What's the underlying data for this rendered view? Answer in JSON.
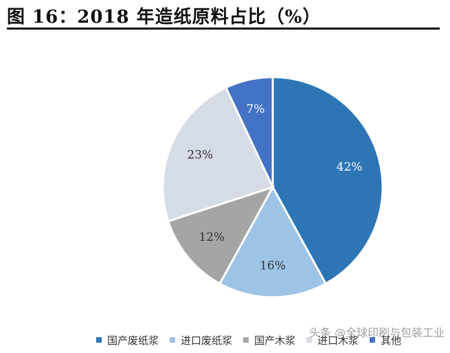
{
  "title": "图 16：2018 年造纸原料占比（%）",
  "chart_data": {
    "type": "pie",
    "slices": [
      {
        "name": "国产废纸浆",
        "value": 42,
        "label": "42%",
        "color": "#2e75b6",
        "label_color": "#ffffff"
      },
      {
        "name": "进口废纸浆",
        "value": 16,
        "label": "16%",
        "color": "#9dc3e6",
        "label_color": "#333333"
      },
      {
        "name": "国产木浆",
        "value": 12,
        "label": "12%",
        "color": "#a5a5a5",
        "label_color": "#333333"
      },
      {
        "name": "进口木浆",
        "value": 23,
        "label": "23%",
        "color": "#d6dce5",
        "label_color": "#333333"
      },
      {
        "name": "其他",
        "value": 7,
        "label": "7%",
        "color": "#4472c4",
        "label_color": "#ffffff"
      }
    ],
    "legend_position": "bottom"
  },
  "watermark": "头条 @全球印刷与包装工业"
}
